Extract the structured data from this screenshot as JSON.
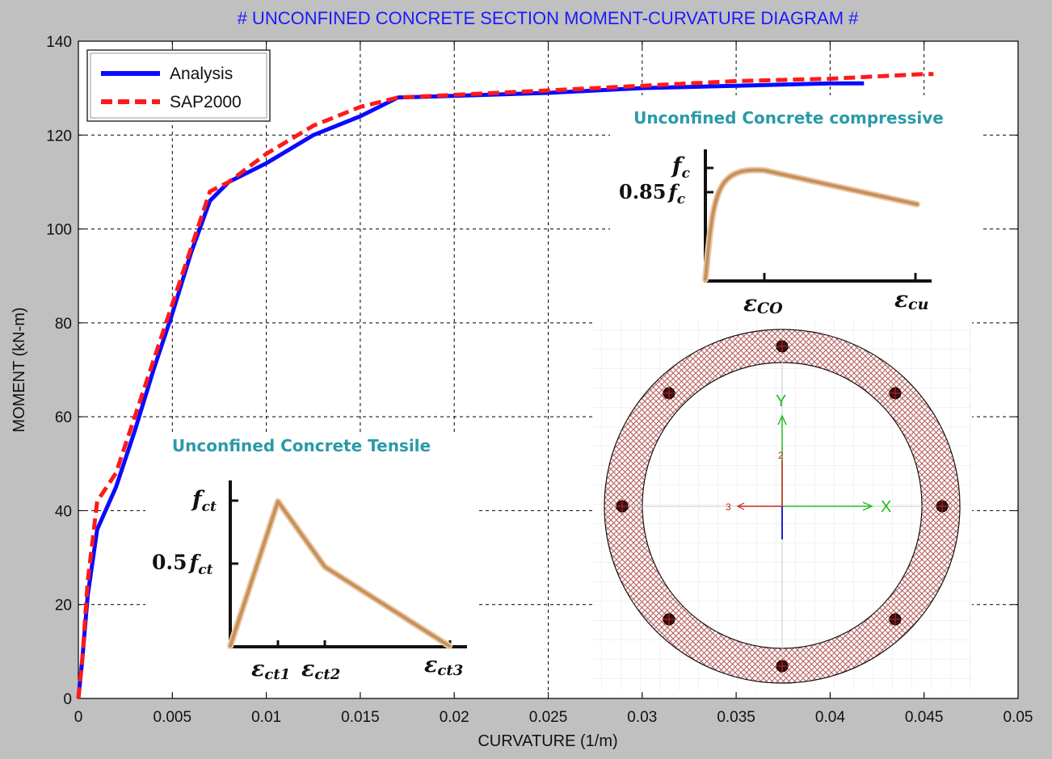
{
  "colors": {
    "analysis": "#0a0aff",
    "sap": "#ff1a1a",
    "title": "#1a1aff",
    "inset_title": "#2a9aa8",
    "curve": "#c8905a",
    "ring": "#b55a5a"
  },
  "chart_data": {
    "type": "line",
    "title": "# UNCONFINED CONCRETE SECTION MOMENT-CURVATURE DIAGRAM #",
    "xlabel": "CURVATURE (1/m)",
    "ylabel": "MOMENT (kN-m)",
    "xlim": [
      0,
      0.05
    ],
    "ylim": [
      0,
      140
    ],
    "grid": true,
    "legend_position": "top-left",
    "x_ticks": [
      "0",
      "0.005",
      "0.01",
      "0.015",
      "0.02",
      "0.025",
      "0.03",
      "0.035",
      "0.04",
      "0.045",
      "0.05"
    ],
    "y_ticks": [
      "0",
      "20",
      "40",
      "60",
      "80",
      "100",
      "120",
      "140"
    ],
    "series": [
      {
        "name": "Analysis",
        "style": "solid",
        "x": [
          0,
          0.0002,
          0.0005,
          0.001,
          0.002,
          0.003,
          0.004,
          0.005,
          0.006,
          0.007,
          0.008,
          0.01,
          0.0125,
          0.015,
          0.017,
          0.025,
          0.03,
          0.035,
          0.04,
          0.0418
        ],
        "y": [
          0,
          8,
          22,
          36,
          45,
          57,
          70,
          82,
          95,
          106,
          110,
          114,
          120,
          124,
          128,
          129,
          130,
          130.5,
          131,
          131
        ]
      },
      {
        "name": "SAP2000",
        "style": "dashed",
        "x": [
          0,
          0.0002,
          0.0005,
          0.001,
          0.002,
          0.003,
          0.004,
          0.005,
          0.006,
          0.007,
          0.008,
          0.01,
          0.0125,
          0.015,
          0.017,
          0.025,
          0.03,
          0.035,
          0.04,
          0.045,
          0.0455
        ],
        "y": [
          0,
          8,
          25,
          42,
          48,
          60,
          72,
          84,
          96,
          108,
          110,
          116,
          122,
          126,
          128,
          129.5,
          130.5,
          131.5,
          132,
          133,
          133
        ]
      }
    ]
  },
  "insets": {
    "compressive": {
      "title": "Unconfined Concrete compressive",
      "y_label_top": "f",
      "y_label_top_sub": "c",
      "y_label_mid_pre": "0.85",
      "y_label_mid": "f",
      "y_label_mid_sub": "c",
      "x_label_1": "ε",
      "x_label_1_sub": "CO",
      "x_label_2": "ε",
      "x_label_2_sub": "cu"
    },
    "tensile": {
      "title": "Unconfined Concrete Tensile",
      "y_label_top": "f",
      "y_label_top_sub": "ct",
      "y_label_mid_pre": "0.5",
      "y_label_mid": "f",
      "y_label_mid_sub": "ct",
      "x_label_1": "ε",
      "x_label_1_sub": "ct1",
      "x_label_2": "ε",
      "x_label_2_sub": "ct2",
      "x_label_3": "ε",
      "x_label_3_sub": "ct3"
    },
    "section": {
      "axis_y": "Y",
      "axis_x": "X",
      "axis_2": "2",
      "axis_3": "3",
      "rebar_count": 8
    }
  }
}
